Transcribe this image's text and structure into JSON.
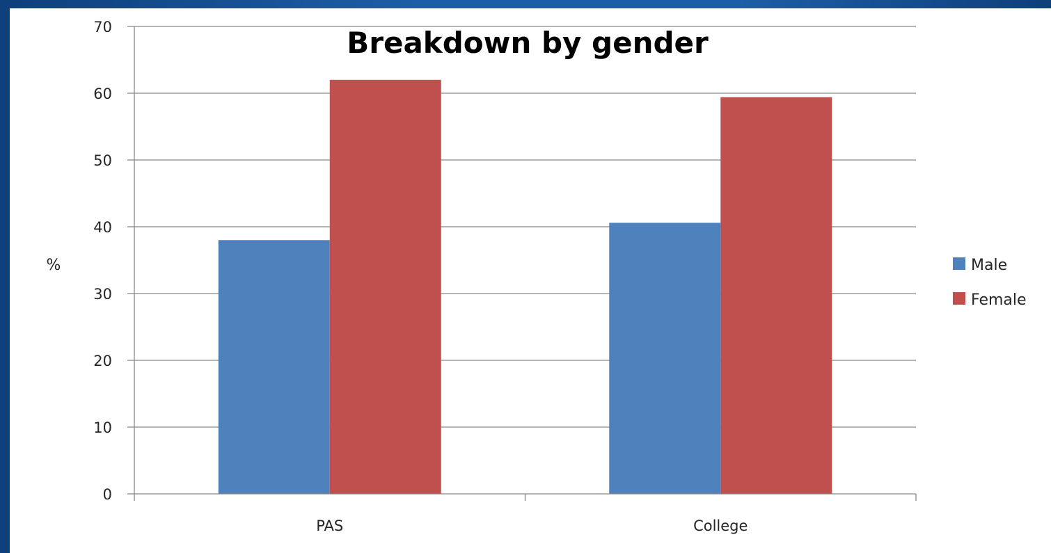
{
  "chart_data": {
    "type": "bar",
    "title": "Breakdown by gender",
    "xlabel": "",
    "ylabel": "%",
    "categories": [
      "PAS",
      "College"
    ],
    "series": [
      {
        "name": "Male",
        "values": [
          38,
          40.6
        ],
        "color": "#4f81bd"
      },
      {
        "name": "Female",
        "values": [
          62,
          59.4
        ],
        "color": "#c0504d"
      }
    ],
    "ylim": [
      0,
      70
    ],
    "yticks": [
      "0",
      "10",
      "20",
      "30",
      "40",
      "50",
      "60",
      "70"
    ],
    "grid": true,
    "legend": "right"
  }
}
